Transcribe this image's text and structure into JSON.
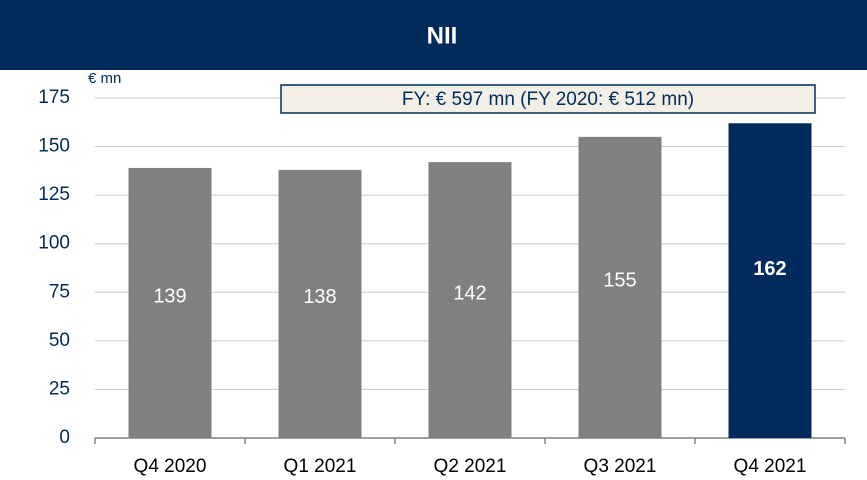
{
  "chart_data": {
    "type": "bar",
    "title": "NII",
    "y_label": "€ mn",
    "annotation": "FY: € 597 mn (FY 2020: € 512 mn)",
    "categories": [
      "Q4 2020",
      "Q1 2021",
      "Q2 2021",
      "Q3 2021",
      "Q4 2021"
    ],
    "values": [
      139,
      138,
      142,
      155,
      162
    ],
    "colors": [
      "#808080",
      "#808080",
      "#808080",
      "#808080",
      "#002b5c"
    ],
    "ylim": [
      0,
      175
    ],
    "yticks": [
      0,
      25,
      50,
      75,
      100,
      125,
      150,
      175
    ],
    "grid": true
  }
}
